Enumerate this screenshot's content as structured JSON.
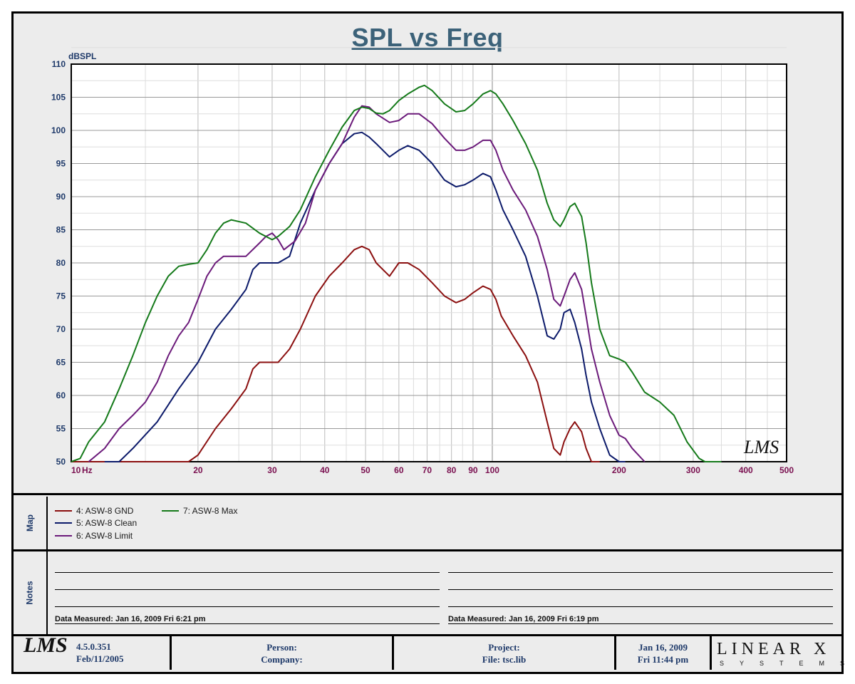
{
  "chart_data": {
    "type": "line",
    "title": "SPL vs Freq",
    "ylabel": "dBSPL",
    "x_unit": "Hz",
    "x_scale": "log",
    "xlim": [
      10,
      500
    ],
    "ylim": [
      50,
      110
    ],
    "grid": true,
    "x_tick_labels": [
      {
        "v": 10,
        "t": "10"
      },
      {
        "v": 20,
        "t": "20"
      },
      {
        "v": 30,
        "t": "30"
      },
      {
        "v": 40,
        "t": "40"
      },
      {
        "v": 50,
        "t": "50"
      },
      {
        "v": 60,
        "t": "60"
      },
      {
        "v": 70,
        "t": "70"
      },
      {
        "v": 80,
        "t": "80"
      },
      {
        "v": 90,
        "t": "90"
      },
      {
        "v": 100,
        "t": "100"
      },
      {
        "v": 200,
        "t": "200"
      },
      {
        "v": 300,
        "t": "300"
      },
      {
        "v": 400,
        "t": "400"
      },
      {
        "v": 500,
        "t": "500"
      }
    ],
    "y_tick_labels": [
      "110",
      "105",
      "100",
      "95",
      "90",
      "85",
      "80",
      "75",
      "70",
      "65",
      "60",
      "55",
      "50"
    ],
    "series": [
      {
        "name": "4: ASW-8 GND",
        "color": "#8b0f0f",
        "x": [
          10,
          16,
          19,
          20,
          22,
          24,
          26,
          27,
          28,
          30,
          31,
          33,
          35,
          38,
          41,
          44,
          47,
          49,
          51,
          53,
          57,
          60,
          63,
          67,
          72,
          77,
          82,
          86,
          90,
          95,
          99,
          102,
          105,
          112,
          120,
          128,
          135,
          140,
          145,
          148,
          153,
          157,
          163,
          167,
          172,
          180
        ],
        "y": [
          50,
          50,
          50,
          51,
          55,
          58,
          61,
          64,
          65,
          65,
          65,
          67,
          70,
          75,
          78,
          80,
          82,
          82.5,
          82,
          80,
          78,
          80,
          80,
          79,
          77,
          75,
          74,
          74.5,
          75.5,
          76.5,
          76,
          74.5,
          72,
          69,
          66,
          62,
          56,
          52,
          51,
          53,
          55,
          56,
          54.5,
          52,
          50,
          50
        ]
      },
      {
        "name": "5: ASW-8 Clean",
        "color": "#0c1a6a",
        "x": [
          12,
          13,
          14,
          16,
          18,
          20,
          22,
          24,
          26,
          27,
          28,
          30,
          31,
          33,
          35,
          38,
          41,
          44,
          47,
          49,
          51,
          53,
          57,
          60,
          63,
          67,
          72,
          77,
          82,
          86,
          90,
          95,
          99,
          102,
          106,
          112,
          120,
          128,
          135,
          140,
          145,
          148,
          153,
          157,
          163,
          167,
          172,
          180,
          190,
          200,
          207
        ],
        "y": [
          50,
          50,
          52,
          56,
          61,
          65,
          70,
          73,
          76,
          79,
          80,
          80,
          80,
          81,
          86,
          91,
          95,
          98,
          99.5,
          99.7,
          99,
          98,
          96,
          97,
          97.7,
          97,
          95,
          92.5,
          91.5,
          91.8,
          92.5,
          93.5,
          93,
          91,
          88,
          85,
          81,
          75,
          69,
          68.5,
          70,
          72.5,
          73,
          71,
          67,
          63,
          59,
          55,
          51,
          50,
          50
        ]
      },
      {
        "name": "6: ASW-8 Limit",
        "color": "#6b1a7a",
        "x": [
          11,
          12,
          13,
          14,
          15,
          16,
          17,
          18,
          19,
          20,
          21,
          22,
          23,
          24,
          26,
          28,
          29,
          30,
          31,
          32,
          34,
          36,
          38,
          41,
          44,
          47,
          49,
          51,
          53,
          57,
          60,
          63,
          67,
          72,
          77,
          82,
          86,
          90,
          95,
          99,
          102,
          106,
          112,
          120,
          128,
          135,
          140,
          145,
          148,
          153,
          157,
          163,
          167,
          172,
          180,
          190,
          200,
          207,
          215,
          230
        ],
        "y": [
          50,
          52,
          55,
          57,
          59,
          62,
          66,
          69,
          71,
          74.5,
          78,
          80,
          81,
          81,
          81,
          83,
          84,
          84.5,
          83.5,
          82,
          83.3,
          86,
          91,
          95,
          98,
          102,
          103.7,
          103.5,
          102.5,
          101.2,
          101.5,
          102.5,
          102.5,
          101,
          98.8,
          97,
          97,
          97.5,
          98.5,
          98.5,
          97,
          94,
          91,
          88,
          84,
          79,
          74.5,
          73.5,
          75,
          77.5,
          78.5,
          76,
          72,
          67,
          62,
          57,
          54,
          53.5,
          52,
          50
        ]
      },
      {
        "name": "7: ASW-8 Max",
        "color": "#157a1a",
        "x": [
          10,
          10.5,
          11,
          12,
          13,
          14,
          15,
          16,
          17,
          18,
          19,
          20,
          21,
          22,
          23,
          24,
          26,
          28,
          30,
          31,
          33,
          35,
          38,
          41,
          44,
          47,
          49,
          51,
          53,
          55,
          57,
          60,
          63,
          67,
          69,
          72,
          77,
          82,
          86,
          90,
          95,
          99,
          102,
          106,
          112,
          120,
          128,
          135,
          140,
          145,
          148,
          153,
          157,
          163,
          167,
          172,
          180,
          190,
          200,
          207,
          215,
          230,
          250,
          270,
          290,
          310,
          320,
          335,
          350
        ],
        "y": [
          50,
          50.5,
          53,
          56,
          61,
          66,
          71,
          75,
          78,
          79.5,
          79.8,
          80,
          82,
          84.5,
          86,
          86.5,
          86,
          84.5,
          83.5,
          84,
          85.5,
          88,
          93,
          97,
          100.5,
          103,
          103.5,
          103.3,
          102.6,
          102.5,
          103,
          104.5,
          105.5,
          106.5,
          106.8,
          106,
          104,
          102.8,
          103,
          104,
          105.5,
          106,
          105.5,
          104,
          101.5,
          98,
          94,
          89,
          86.5,
          85.5,
          86.5,
          88.5,
          89,
          87,
          83,
          77,
          70,
          66,
          65.5,
          65,
          63.5,
          60.5,
          59,
          57,
          53,
          50.5,
          50,
          50,
          50
        ]
      }
    ]
  },
  "legend": {
    "section_label": "Map"
  },
  "notes": {
    "section_label": "Notes",
    "left": "Data Measured: Jan 16, 2009  Fri  6:21 pm",
    "right": "Data Measured: Jan 16, 2009  Fri  6:19 pm"
  },
  "footer": {
    "logo": "LMS",
    "version": "4.5.0.351",
    "version_date": "Feb/11/2005",
    "person_label": "Person:",
    "company_label": "Company:",
    "project_label": "Project:",
    "file_label": "File: tsc.lib",
    "date": "Jan 16, 2009",
    "time": "Fri 11:44 pm",
    "brand": "LINEAR X",
    "brand_sub": "SYSTEMS"
  },
  "watermark": "LMS",
  "colors": {
    "axis_label": "#1f3a6a",
    "x_tick": "#7a1050",
    "title": "#3c6279"
  }
}
